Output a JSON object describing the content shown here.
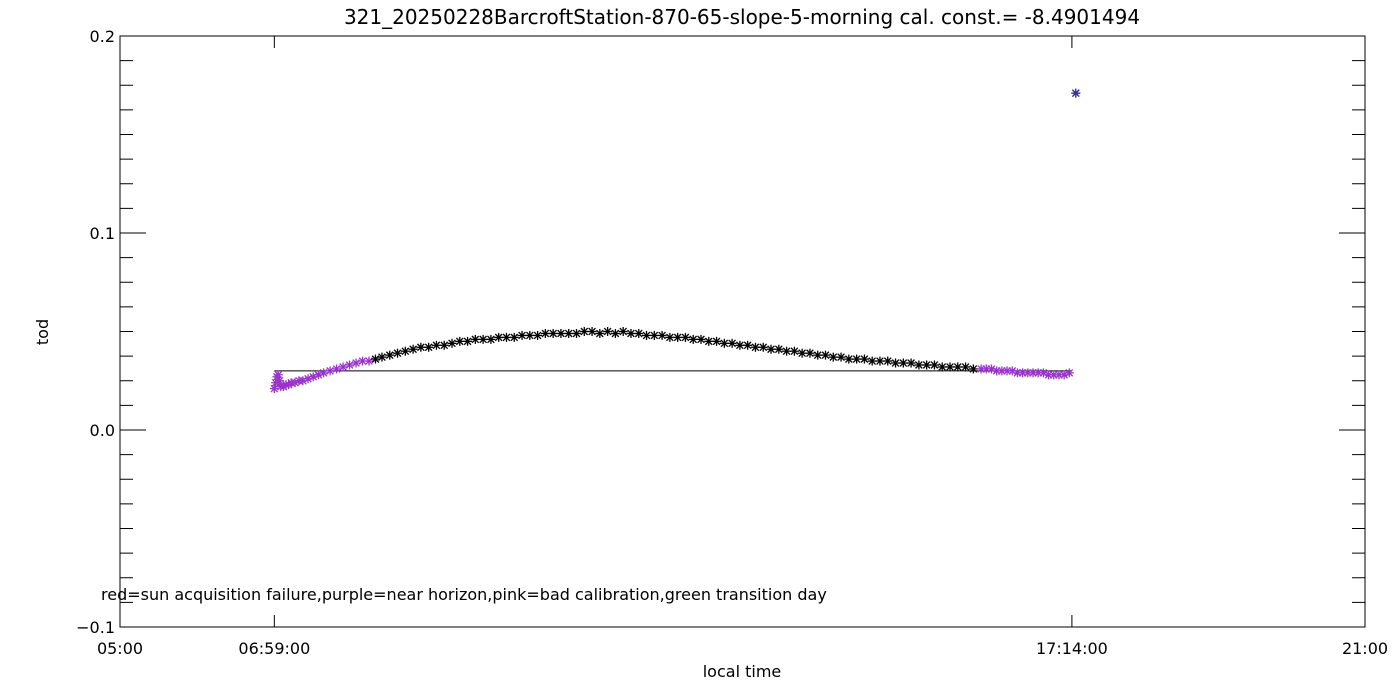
{
  "chart_data": {
    "type": "scatter",
    "title": "321_20250228BarcroftStation-870-65-slope-5-morning cal. const.= -8.4901494",
    "xlabel": "local time",
    "ylabel": "tod",
    "xlim": [
      "05:00",
      "21:00"
    ],
    "ylim": [
      -0.1,
      0.2
    ],
    "x_ticks": [
      "05:00",
      "06:59:00",
      "17:14:00",
      "21:00"
    ],
    "y_ticks": [
      "-0.1",
      "0.0",
      "0.1",
      "0.2"
    ],
    "y_minor_step": 0.0125,
    "grid": false,
    "reference_line": {
      "x_start": "06:59:00",
      "x_end": "17:14:00",
      "y": 0.03
    },
    "annotation": "red=sun acquisition failure,purple=near horizon,pink=bad calibration,green transition day",
    "colors": {
      "normal": "#000000",
      "near_horizon": "#9933cc",
      "line": "#000000"
    },
    "series": [
      {
        "x": [
          "06:59",
          "07:00",
          "07:01",
          "07:02",
          "07:03",
          "07:04",
          "07:06",
          "07:08",
          "07:10",
          "07:12",
          "07:15",
          "07:18",
          "07:21",
          "07:25",
          "07:29",
          "07:33",
          "07:37",
          "07:42",
          "07:47",
          "07:52",
          "07:57",
          "08:02",
          "08:07",
          "08:12",
          "08:17",
          "08:22",
          "08:28",
          "08:34",
          "08:40",
          "08:46",
          "08:52",
          "08:58",
          "09:04",
          "09:10",
          "09:16",
          "09:22",
          "09:28",
          "09:34",
          "09:40",
          "09:46",
          "09:52",
          "09:58",
          "10:04",
          "10:10",
          "10:16",
          "10:22",
          "10:28",
          "10:34",
          "10:40",
          "10:46",
          "10:52",
          "10:58",
          "11:04",
          "11:10",
          "11:16",
          "11:22",
          "11:28",
          "11:34",
          "11:40",
          "11:46",
          "11:52",
          "11:58",
          "12:04",
          "12:10",
          "12:16",
          "12:22",
          "12:28",
          "12:34",
          "12:40",
          "12:46",
          "12:52",
          "12:58",
          "13:04",
          "13:10",
          "13:16",
          "13:22",
          "13:28",
          "13:34",
          "13:40",
          "13:46",
          "13:52",
          "13:58",
          "14:04",
          "14:10",
          "14:16",
          "14:22",
          "14:28",
          "14:34",
          "14:40",
          "14:46",
          "14:52",
          "14:58",
          "15:04",
          "15:10",
          "15:16",
          "15:22",
          "15:28",
          "15:34",
          "15:40",
          "15:46",
          "15:52",
          "15:58",
          "16:04",
          "16:08",
          "16:12",
          "16:16",
          "16:20",
          "16:24",
          "16:28",
          "16:32",
          "16:36",
          "16:40",
          "16:44",
          "16:48",
          "16:52",
          "16:56",
          "17:00",
          "17:04",
          "17:08",
          "17:12"
        ],
        "y": [
          0.021,
          0.024,
          0.027,
          0.028,
          0.025,
          0.022,
          0.022,
          0.023,
          0.023,
          0.024,
          0.024,
          0.025,
          0.025,
          0.026,
          0.027,
          0.028,
          0.029,
          0.03,
          0.031,
          0.032,
          0.033,
          0.034,
          0.035,
          0.035,
          0.036,
          0.037,
          0.038,
          0.039,
          0.04,
          0.041,
          0.042,
          0.042,
          0.043,
          0.043,
          0.044,
          0.045,
          0.045,
          0.046,
          0.046,
          0.046,
          0.047,
          0.047,
          0.047,
          0.048,
          0.048,
          0.048,
          0.049,
          0.049,
          0.049,
          0.049,
          0.049,
          0.05,
          0.05,
          0.049,
          0.05,
          0.049,
          0.05,
          0.049,
          0.049,
          0.048,
          0.048,
          0.048,
          0.047,
          0.047,
          0.047,
          0.046,
          0.046,
          0.045,
          0.045,
          0.044,
          0.044,
          0.043,
          0.043,
          0.042,
          0.042,
          0.041,
          0.041,
          0.04,
          0.04,
          0.039,
          0.039,
          0.038,
          0.038,
          0.037,
          0.037,
          0.036,
          0.036,
          0.036,
          0.035,
          0.035,
          0.035,
          0.034,
          0.034,
          0.034,
          0.033,
          0.033,
          0.033,
          0.032,
          0.032,
          0.032,
          0.032,
          0.031,
          0.031,
          0.031,
          0.031,
          0.03,
          0.03,
          0.03,
          0.03,
          0.029,
          0.029,
          0.029,
          0.029,
          0.029,
          0.029,
          0.028,
          0.028,
          0.028,
          0.028,
          0.029
        ],
        "flag": [
          "near_horizon",
          "near_horizon",
          "near_horizon",
          "near_horizon",
          "near_horizon",
          "near_horizon",
          "near_horizon",
          "near_horizon",
          "near_horizon",
          "near_horizon",
          "near_horizon",
          "near_horizon",
          "near_horizon",
          "near_horizon",
          "near_horizon",
          "near_horizon",
          "near_horizon",
          "near_horizon",
          "near_horizon",
          "near_horizon",
          "near_horizon",
          "near_horizon",
          "near_horizon",
          "near_horizon",
          "normal",
          "normal",
          "normal",
          "normal",
          "normal",
          "normal",
          "normal",
          "normal",
          "normal",
          "normal",
          "normal",
          "normal",
          "normal",
          "normal",
          "normal",
          "normal",
          "normal",
          "normal",
          "normal",
          "normal",
          "normal",
          "normal",
          "normal",
          "normal",
          "normal",
          "normal",
          "normal",
          "normal",
          "normal",
          "normal",
          "normal",
          "normal",
          "normal",
          "normal",
          "normal",
          "normal",
          "normal",
          "normal",
          "normal",
          "normal",
          "normal",
          "normal",
          "normal",
          "normal",
          "normal",
          "normal",
          "normal",
          "normal",
          "normal",
          "normal",
          "normal",
          "normal",
          "normal",
          "normal",
          "normal",
          "normal",
          "normal",
          "normal",
          "normal",
          "normal",
          "normal",
          "normal",
          "normal",
          "normal",
          "normal",
          "normal",
          "normal",
          "normal",
          "normal",
          "normal",
          "normal",
          "normal",
          "normal",
          "normal",
          "normal",
          "normal",
          "normal",
          "normal",
          "near_horizon",
          "near_horizon",
          "near_horizon",
          "near_horizon",
          "near_horizon",
          "near_horizon",
          "near_horizon",
          "near_horizon",
          "near_horizon",
          "near_horizon",
          "near_horizon",
          "near_horizon",
          "near_horizon",
          "near_horizon",
          "near_horizon",
          "near_horizon",
          "near_horizon",
          "near_horizon"
        ]
      }
    ],
    "outlier": {
      "x": "17:17",
      "y": 0.171,
      "flag": "near_horizon"
    }
  }
}
